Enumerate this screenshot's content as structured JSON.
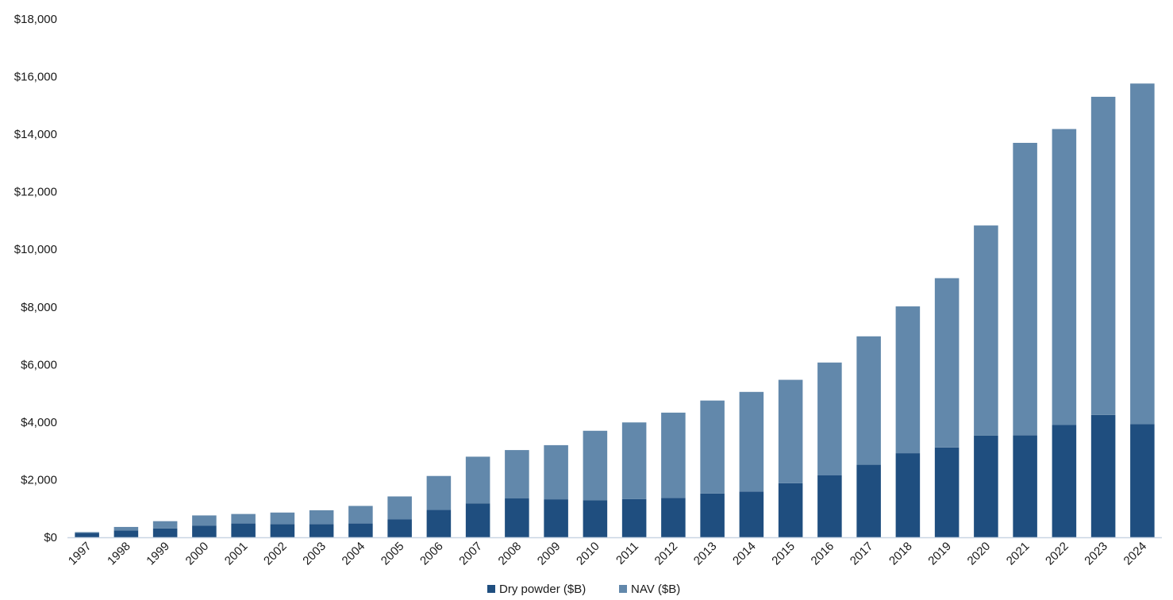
{
  "chart_data": {
    "type": "bar",
    "stacked": true,
    "categories": [
      "1997",
      "1998",
      "1999",
      "2000",
      "2001",
      "2002",
      "2003",
      "2004",
      "2005",
      "2006",
      "2007",
      "2008",
      "2009",
      "2010",
      "2011",
      "2012",
      "2013",
      "2014",
      "2015",
      "2016",
      "2017",
      "2018",
      "2019",
      "2020",
      "2021",
      "2022",
      "2023",
      "2024"
    ],
    "series": [
      {
        "name": "Dry powder ($B)",
        "color": "#1f4e7f",
        "values": [
          150,
          240,
          310,
          400,
          480,
          460,
          460,
          480,
          620,
          950,
          1180,
          1350,
          1320,
          1290,
          1330,
          1370,
          1520,
          1590,
          1880,
          2150,
          2520,
          2920,
          3120,
          3530,
          3540,
          3900,
          4250,
          3930
        ]
      },
      {
        "name": "NAV ($B)",
        "color": "#6288ab",
        "values": [
          30,
          120,
          250,
          360,
          330,
          400,
          480,
          610,
          800,
          1180,
          1620,
          1680,
          1880,
          2410,
          2660,
          2960,
          3230,
          3460,
          3590,
          3920,
          4460,
          5100,
          5880,
          7300,
          10160,
          10280,
          11050,
          11830
        ]
      }
    ],
    "yticks": [
      "$0",
      "$2,000",
      "$4,000",
      "$6,000",
      "$8,000",
      "$10,000",
      "$12,000",
      "$14,000",
      "$16,000",
      "$18,000"
    ],
    "ylim": [
      0,
      18000
    ],
    "grid": false,
    "legend": "bottom-center"
  }
}
